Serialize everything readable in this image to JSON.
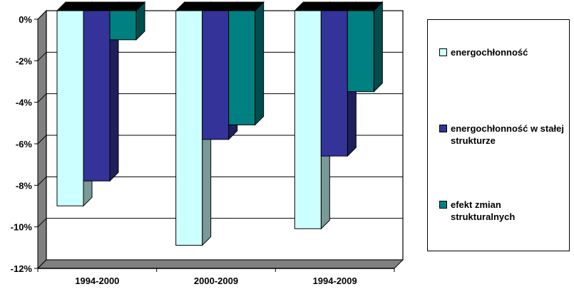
{
  "chart_data": {
    "type": "bar",
    "categories": [
      "1994-2000",
      "2000-2009",
      "1994-2009"
    ],
    "series": [
      {
        "name": "energochłonność",
        "values": [
          -9.4,
          -11.3,
          -10.5
        ],
        "color": "#ccffff"
      },
      {
        "name": "energochłonność w stałej strukturze",
        "values": [
          -8.2,
          -6.2,
          -7.0
        ],
        "color": "#333399"
      },
      {
        "name": "efekt zmian strukturalnych",
        "values": [
          -1.4,
          -5.5,
          -3.9
        ],
        "color": "#008080"
      }
    ],
    "yticks": [
      "0%",
      "-2%",
      "-4%",
      "-6%",
      "-8%",
      "-10%",
      "-12%"
    ],
    "ylim": [
      -12,
      0
    ],
    "grid": true,
    "legend": "right",
    "style": "3d-clustered-column"
  }
}
